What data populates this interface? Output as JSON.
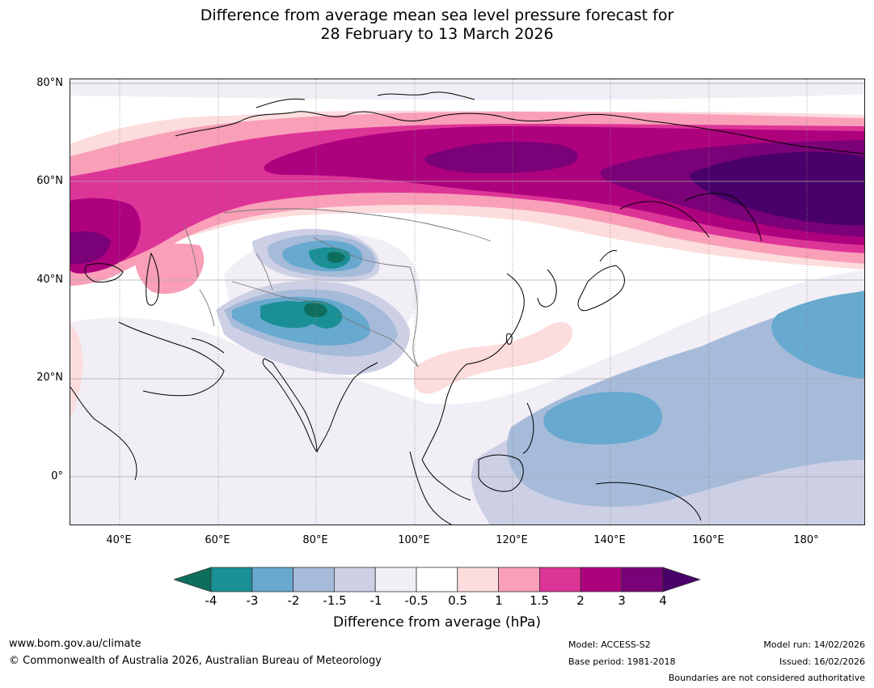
{
  "title_line1": "Difference from average mean sea level pressure forecast for",
  "title_line2": "28 February to 13 March 2026",
  "lat_labels": [
    "80°N",
    "60°N",
    "40°N",
    "20°N",
    "0°"
  ],
  "lon_labels": [
    "40°E",
    "60°E",
    "80°E",
    "100°E",
    "120°E",
    "140°E",
    "160°E",
    "180°"
  ],
  "legend": {
    "title": "Difference from average (hPa)",
    "tick_labels": [
      "-4",
      "-3",
      "-2",
      "-1.5",
      "-1",
      "-0.5",
      "0.5",
      "1",
      "1.5",
      "2",
      "3",
      "4"
    ],
    "colors": [
      "#0e6e5e",
      "#1a9096",
      "#67a9cf",
      "#a6bbd9",
      "#cdd0e5",
      "#f1eef6",
      "#ffffff",
      "#fcdcdc",
      "#f99fb8",
      "#dd3497",
      "#ae017e",
      "#7a0177",
      "#49006a"
    ]
  },
  "footer": {
    "website": "www.bom.gov.au/climate",
    "copyright": "© Commonwealth of Australia 2026, Australian Bureau of Meteorology",
    "model": "Model: ACCESS-S2",
    "base_period": "Base period: 1981-2018",
    "model_run": "Model run: 14/02/2026",
    "issued": "Issued: 16/02/2026",
    "boundaries": "Boundaries are not considered authoritative"
  }
}
